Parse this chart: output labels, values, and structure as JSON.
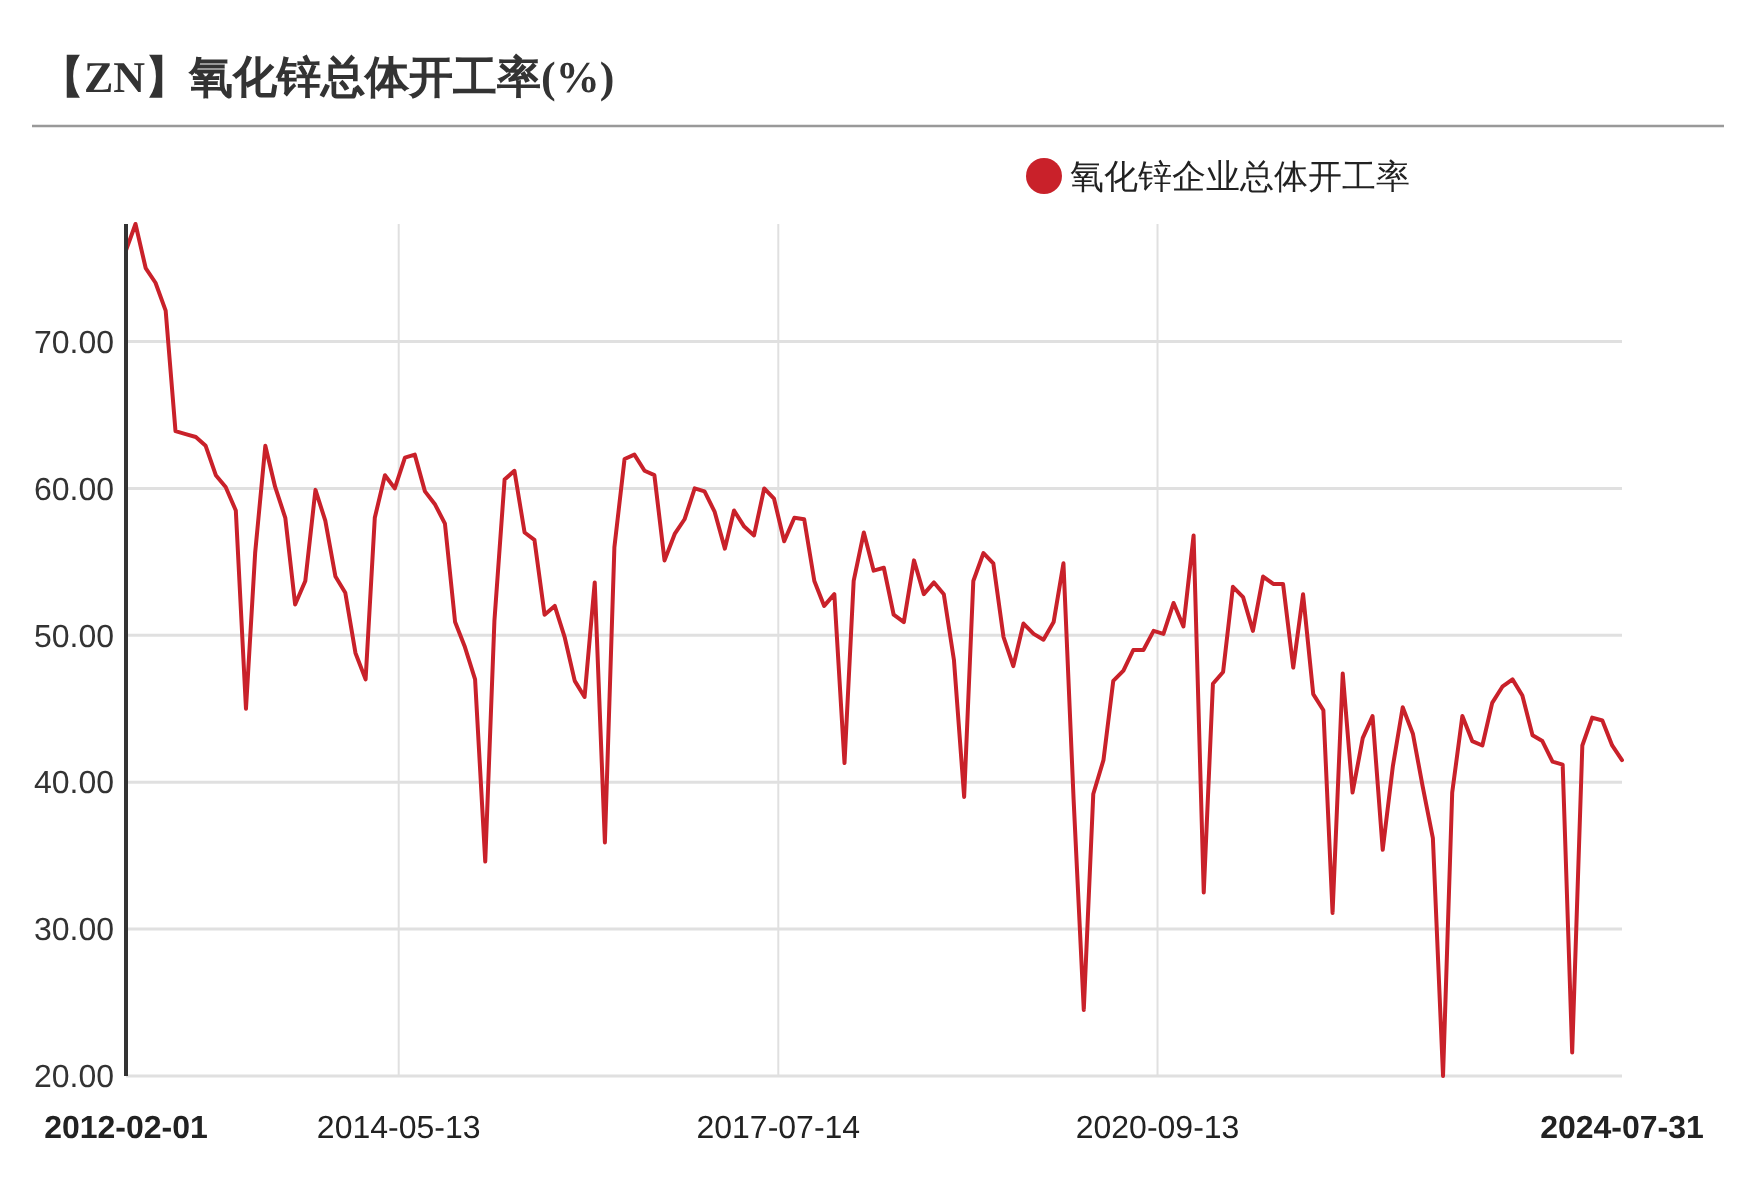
{
  "chart_data": {
    "type": "line",
    "title": "【ZN】氧化锌总体开工率(%)",
    "x": [
      "2012-02",
      "2012-03",
      "2012-04",
      "2012-05",
      "2012-06",
      "2012-07",
      "2012-08",
      "2012-09",
      "2012-10",
      "2012-11",
      "2012-12",
      "2013-01",
      "2013-02",
      "2013-03",
      "2013-04",
      "2013-05",
      "2013-06",
      "2013-07",
      "2013-08",
      "2013-09",
      "2013-10",
      "2013-11",
      "2013-12",
      "2014-01",
      "2014-02",
      "2014-03",
      "2014-04",
      "2014-05",
      "2014-06",
      "2014-07",
      "2014-08",
      "2014-09",
      "2014-10",
      "2014-11",
      "2014-12",
      "2015-01",
      "2015-02",
      "2015-03",
      "2015-04",
      "2015-05",
      "2015-06",
      "2015-07",
      "2015-08",
      "2015-09",
      "2015-10",
      "2015-11",
      "2015-12",
      "2016-01",
      "2016-02",
      "2016-03",
      "2016-04",
      "2016-05",
      "2016-06",
      "2016-07",
      "2016-08",
      "2016-09",
      "2016-10",
      "2016-11",
      "2016-12",
      "2017-01",
      "2017-02",
      "2017-03",
      "2017-04",
      "2017-05",
      "2017-06",
      "2017-07",
      "2017-08",
      "2017-09",
      "2017-10",
      "2017-11",
      "2017-12",
      "2018-01",
      "2018-02",
      "2018-03",
      "2018-04",
      "2018-05",
      "2018-06",
      "2018-07",
      "2018-08",
      "2018-09",
      "2018-10",
      "2018-11",
      "2018-12",
      "2019-01",
      "2019-02",
      "2019-03",
      "2019-04",
      "2019-05",
      "2019-06",
      "2019-07",
      "2019-08",
      "2019-09",
      "2019-10",
      "2019-11",
      "2019-12",
      "2020-01",
      "2020-02",
      "2020-03",
      "2020-04",
      "2020-05",
      "2020-06",
      "2020-07",
      "2020-08",
      "2020-09",
      "2020-10",
      "2020-11",
      "2020-12",
      "2021-01",
      "2021-02",
      "2021-03",
      "2021-04",
      "2021-05",
      "2021-06",
      "2021-07",
      "2021-08",
      "2021-09",
      "2021-10",
      "2021-11",
      "2021-12",
      "2022-01",
      "2022-02",
      "2022-03",
      "2022-04",
      "2022-05",
      "2022-06",
      "2022-07",
      "2022-08",
      "2022-09",
      "2022-10",
      "2022-11",
      "2022-12",
      "2023-01",
      "2023-02",
      "2023-03",
      "2023-04",
      "2023-05",
      "2023-06",
      "2023-07",
      "2023-08",
      "2023-09",
      "2023-10",
      "2023-11",
      "2023-12",
      "2024-01",
      "2024-02",
      "2024-03",
      "2024-04",
      "2024-05",
      "2024-06",
      "2024-07",
      "2024-07-31"
    ],
    "series": [
      {
        "name": "氧化锌企业总体开工率",
        "color": "#c9212a",
        "values": [
          76.2,
          78.0,
          75.0,
          74.0,
          72.1,
          63.9,
          63.7,
          63.5,
          62.9,
          60.9,
          60.1,
          58.5,
          45.0,
          55.6,
          62.9,
          60.1,
          58.0,
          52.1,
          53.7,
          59.9,
          57.8,
          54.0,
          52.9,
          48.8,
          47.0,
          58.0,
          60.9,
          60.0,
          62.1,
          62.3,
          59.8,
          58.9,
          57.6,
          50.9,
          49.2,
          47.0,
          34.6,
          51.0,
          60.6,
          61.2,
          57.0,
          56.5,
          51.4,
          52.0,
          49.9,
          46.9,
          45.8,
          53.6,
          35.9,
          56.0,
          62.0,
          62.3,
          61.2,
          60.9,
          55.1,
          56.9,
          57.9,
          60.0,
          59.8,
          58.4,
          55.9,
          58.5,
          57.4,
          56.8,
          60.0,
          59.3,
          56.4,
          58.0,
          57.9,
          53.7,
          52.0,
          52.8,
          41.3,
          53.7,
          57.0,
          54.4,
          54.6,
          51.4,
          50.9,
          55.1,
          52.8,
          53.6,
          52.8,
          48.3,
          39.0,
          53.7,
          55.6,
          54.9,
          49.9,
          47.9,
          50.8,
          50.1,
          49.7,
          50.9,
          54.9,
          38.8,
          24.5,
          39.2,
          41.5,
          46.9,
          47.6,
          49.0,
          49.0,
          50.3,
          50.1,
          52.2,
          50.6,
          56.8,
          32.5,
          46.7,
          47.5,
          53.3,
          52.6,
          50.3,
          54.0,
          53.5,
          53.5,
          47.8,
          52.8,
          46.0,
          44.9,
          31.1,
          47.4,
          39.3,
          43.0,
          44.5,
          35.4,
          41.1,
          45.1,
          43.3,
          39.7,
          36.2,
          20.0,
          39.3,
          44.5,
          42.8,
          42.5,
          45.4,
          46.5,
          47.0,
          45.9,
          43.2,
          42.8,
          41.4,
          41.2,
          21.6,
          42.5,
          44.4,
          44.2,
          42.5,
          41.5
        ]
      }
    ],
    "xlim": [
      "2012-02-01",
      "2024-07-31"
    ],
    "xticks": [
      "2012-02-01",
      "2014-05-13",
      "2017-07-14",
      "2020-09-13",
      "2024-07-31"
    ],
    "ylim": [
      20,
      78
    ],
    "yticks": [
      {
        "value": 20,
        "label": "20.00"
      },
      {
        "value": 30,
        "label": "30.00"
      },
      {
        "value": 40,
        "label": "40.00"
      },
      {
        "value": 50,
        "label": "50.00"
      },
      {
        "value": 60,
        "label": "60.00"
      },
      {
        "value": 70,
        "label": "70.00"
      }
    ],
    "grid": true,
    "legend": "top right",
    "marker": "none",
    "line_style": "solid"
  }
}
